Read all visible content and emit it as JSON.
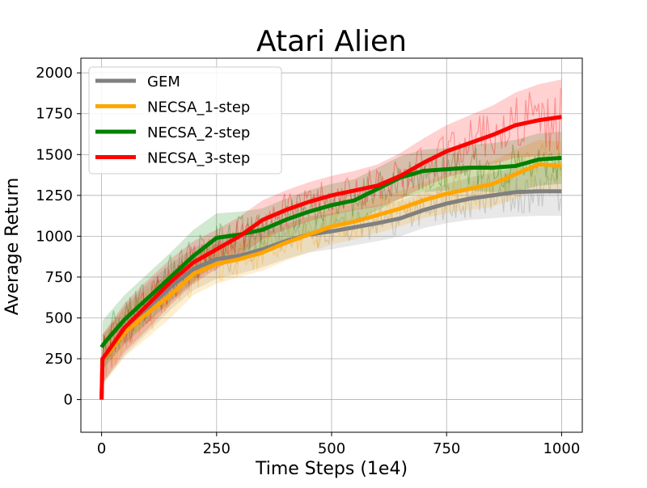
{
  "chart_data": {
    "type": "line",
    "title": "Atari Alien",
    "xlabel": "Time Steps (1e4)",
    "ylabel": "Average Return",
    "xlim": [
      -45,
      1045
    ],
    "ylim": [
      -200,
      2090
    ],
    "xticks": [
      0,
      250,
      500,
      750,
      1000
    ],
    "yticks": [
      0,
      250,
      500,
      750,
      1000,
      1250,
      1500,
      1750,
      2000
    ],
    "xtick_labels": [
      "0",
      "250",
      "500",
      "750",
      "1000"
    ],
    "ytick_labels": [
      "0",
      "250",
      "500",
      "750",
      "1000",
      "1250",
      "1500",
      "1750",
      "2000"
    ],
    "grid": true,
    "legend_position": "upper-left",
    "series": [
      {
        "name": "GEM",
        "color": "#808080",
        "x": [
          0,
          2,
          10,
          50,
          100,
          150,
          200,
          250,
          300,
          350,
          400,
          450,
          500,
          550,
          600,
          650,
          700,
          750,
          800,
          850,
          900,
          950,
          1000
        ],
        "y": [
          0,
          250,
          270,
          420,
          560,
          690,
          800,
          860,
          880,
          920,
          970,
          1010,
          1030,
          1055,
          1080,
          1110,
          1160,
          1200,
          1230,
          1250,
          1270,
          1275,
          1275
        ],
        "band": [
          140,
          150,
          150,
          150,
          150,
          140,
          130,
          120,
          110,
          110,
          110,
          110,
          110,
          110,
          110,
          110,
          110,
          120,
          130,
          140,
          150,
          150,
          150
        ]
      },
      {
        "name": "NECSA_1-step",
        "color": "#FFA500",
        "x": [
          0,
          2,
          10,
          50,
          100,
          150,
          200,
          250,
          300,
          350,
          400,
          450,
          500,
          550,
          600,
          650,
          700,
          750,
          800,
          850,
          900,
          950,
          1000
        ],
        "y": [
          0,
          250,
          270,
          410,
          530,
          640,
          770,
          830,
          860,
          900,
          960,
          1010,
          1060,
          1090,
          1130,
          1170,
          1220,
          1260,
          1290,
          1320,
          1380,
          1440,
          1430
        ],
        "band": [
          140,
          150,
          150,
          150,
          150,
          140,
          130,
          120,
          110,
          110,
          110,
          110,
          110,
          110,
          110,
          110,
          110,
          120,
          130,
          140,
          150,
          150,
          150
        ]
      },
      {
        "name": "NECSA_2-step",
        "color": "#008000",
        "x": [
          0,
          2,
          10,
          50,
          100,
          150,
          200,
          250,
          300,
          350,
          400,
          450,
          500,
          550,
          600,
          650,
          700,
          750,
          800,
          850,
          900,
          950,
          1000
        ],
        "y": [
          320,
          330,
          360,
          490,
          620,
          750,
          880,
          990,
          1010,
          1040,
          1100,
          1150,
          1190,
          1220,
          1290,
          1360,
          1400,
          1410,
          1420,
          1420,
          1430,
          1470,
          1480
        ],
        "band": [
          140,
          150,
          150,
          150,
          150,
          150,
          160,
          150,
          140,
          130,
          130,
          130,
          130,
          130,
          130,
          130,
          130,
          130,
          140,
          150,
          160,
          160,
          160
        ]
      },
      {
        "name": "NECSA_3-step",
        "color": "#FF0000",
        "x": [
          0,
          2,
          10,
          50,
          100,
          150,
          200,
          250,
          300,
          350,
          400,
          450,
          500,
          550,
          600,
          650,
          700,
          750,
          800,
          850,
          900,
          950,
          1000
        ],
        "y": [
          0,
          250,
          280,
          440,
          580,
          720,
          840,
          920,
          1000,
          1100,
          1160,
          1210,
          1250,
          1280,
          1310,
          1370,
          1450,
          1520,
          1570,
          1620,
          1680,
          1710,
          1730
        ],
        "band": [
          140,
          150,
          150,
          150,
          150,
          140,
          130,
          120,
          120,
          120,
          120,
          120,
          120,
          120,
          130,
          140,
          150,
          160,
          170,
          180,
          200,
          220,
          230
        ]
      }
    ]
  }
}
